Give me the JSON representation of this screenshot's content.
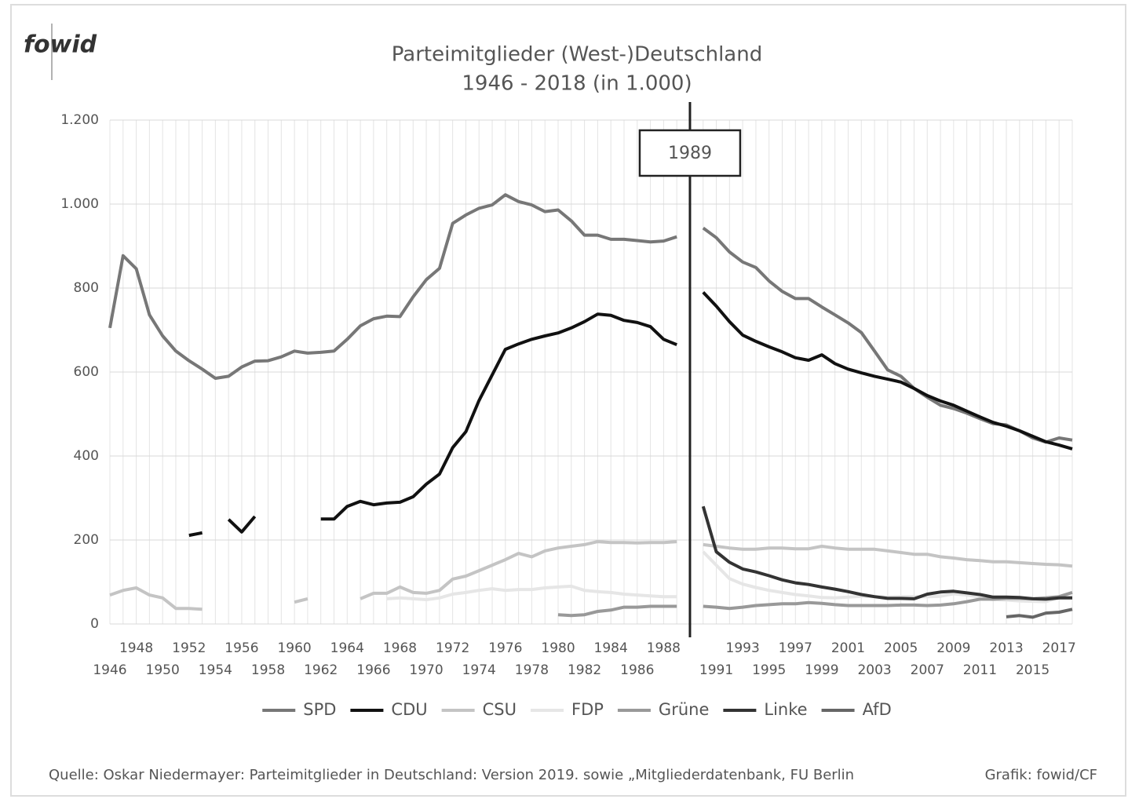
{
  "chart_data": {
    "type": "line",
    "logo": "fowid",
    "title": "Parteimitglieder (West-)Deutschland",
    "subtitle": "1946 - 2018 (in 1.000)",
    "annotation": "1989",
    "source": "Quelle: Oskar Niedermayer: Parteimitglieder in Deutschland: Version 2019. sowie „Mitgliederdatenbank, FU Berlin",
    "credit": "Grafik: fowid/CF",
    "categories": [
      "1946",
      null,
      "1948",
      null,
      "1950",
      null,
      "1952",
      null,
      "1954",
      null,
      "1956",
      null,
      "1958",
      null,
      "1960",
      null,
      "1962",
      null,
      "1964",
      null,
      "1966",
      null,
      "1968",
      null,
      "1970",
      null,
      "1972",
      null,
      "1974",
      null,
      "1976",
      null,
      "1978",
      null,
      "1980",
      null,
      "1982",
      null,
      "1984",
      null,
      "1986",
      null,
      "1988",
      null,
      null,
      null,
      "1991",
      null,
      "1993",
      null,
      "1995",
      null,
      "1997",
      null,
      "1999",
      null,
      "2001",
      null,
      "2003",
      null,
      "2005",
      null,
      "2007",
      null,
      "2009",
      null,
      "2011",
      null,
      "2013",
      null,
      "2015",
      null,
      "2017",
      null
    ],
    "ylim": [
      0,
      1200
    ],
    "yticks": [
      0,
      200,
      400,
      600,
      800,
      {
        "value": 1000,
        "label": "1.000"
      },
      {
        "value": 1200,
        "label": "1.200"
      }
    ],
    "grid": true,
    "legend": "bottom",
    "series": [
      {
        "name": "SPD",
        "color": "#777777",
        "values": [
          705,
          877,
          846,
          736,
          686,
          650,
          627,
          607,
          585,
          590,
          612,
          626,
          627,
          636,
          650,
          645,
          647,
          650,
          678,
          710,
          727,
          733,
          732,
          779,
          820,
          847,
          954,
          974,
          990,
          998,
          1022,
          1006,
          998,
          982,
          986,
          960,
          926,
          926,
          916,
          916,
          913,
          910,
          912,
          922,
          null,
          943,
          920,
          886,
          862,
          849,
          817,
          792,
          775,
          775,
          755,
          736,
          717,
          694,
          650,
          605,
          590,
          561,
          540,
          521,
          513,
          502,
          489,
          477,
          474,
          460,
          443,
          433,
          443,
          438
        ]
      },
      {
        "name": "CDU",
        "color": "#111111",
        "values": [
          null,
          null,
          null,
          null,
          null,
          null,
          211,
          217,
          null,
          249,
          219,
          256,
          null,
          null,
          null,
          null,
          250,
          250,
          280,
          292,
          284,
          288,
          290,
          303,
          333,
          357,
          420,
          458,
          532,
          593,
          654,
          667,
          678,
          686,
          693,
          705,
          720,
          738,
          735,
          723,
          718,
          708,
          678,
          665,
          null,
          790,
          757,
          720,
          688,
          673,
          660,
          648,
          634,
          628,
          641,
          620,
          607,
          598,
          590,
          583,
          576,
          561,
          544,
          531,
          521,
          507,
          493,
          480,
          471,
          460,
          447,
          434,
          426,
          417
        ]
      },
      {
        "name": "CSU",
        "color": "#c4c4c4",
        "values": [
          69,
          80,
          86,
          69,
          62,
          37,
          37,
          35,
          null,
          null,
          null,
          null,
          null,
          null,
          52,
          60,
          null,
          null,
          null,
          60,
          73,
          73,
          88,
          75,
          73,
          80,
          107,
          114,
          127,
          140,
          153,
          168,
          160,
          174,
          181,
          185,
          189,
          196,
          194,
          194,
          193,
          194,
          194,
          196,
          null,
          189,
          185,
          181,
          178,
          178,
          181,
          181,
          179,
          179,
          185,
          181,
          178,
          178,
          178,
          174,
          170,
          166,
          166,
          160,
          157,
          153,
          151,
          148,
          148,
          146,
          144,
          142,
          141,
          138
        ]
      },
      {
        "name": "FDP",
        "color": "#e6e6e6",
        "values": [
          null,
          null,
          null,
          null,
          null,
          null,
          null,
          null,
          null,
          null,
          null,
          null,
          null,
          null,
          null,
          null,
          null,
          null,
          null,
          null,
          null,
          60,
          62,
          60,
          58,
          62,
          71,
          75,
          80,
          84,
          80,
          82,
          82,
          86,
          88,
          90,
          80,
          77,
          75,
          71,
          69,
          67,
          65,
          65,
          null,
          172,
          140,
          108,
          95,
          87,
          80,
          75,
          70,
          67,
          63,
          62,
          64,
          66,
          65,
          64,
          65,
          65,
          65,
          66,
          72,
          69,
          64,
          58,
          57,
          55,
          54,
          53,
          63,
          64
        ]
      },
      {
        "name": "Grüne",
        "color": "#999999",
        "values": [
          null,
          null,
          null,
          null,
          null,
          null,
          null,
          null,
          null,
          null,
          null,
          null,
          null,
          null,
          null,
          null,
          null,
          null,
          null,
          null,
          null,
          null,
          null,
          null,
          null,
          null,
          null,
          null,
          null,
          null,
          null,
          null,
          null,
          null,
          22,
          20,
          22,
          30,
          33,
          40,
          40,
          42,
          42,
          42,
          null,
          42,
          40,
          37,
          40,
          44,
          46,
          48,
          48,
          51,
          49,
          46,
          44,
          44,
          44,
          44,
          45,
          45,
          44,
          45,
          48,
          53,
          59,
          59,
          61,
          61,
          60,
          62,
          65,
          75
        ]
      },
      {
        "name": "Linke",
        "color": "#333333",
        "values": [
          null,
          null,
          null,
          null,
          null,
          null,
          null,
          null,
          null,
          null,
          null,
          null,
          null,
          null,
          null,
          null,
          null,
          null,
          null,
          null,
          null,
          null,
          null,
          null,
          null,
          null,
          null,
          null,
          null,
          null,
          null,
          null,
          null,
          null,
          null,
          null,
          null,
          null,
          null,
          null,
          null,
          null,
          null,
          null,
          null,
          280,
          172,
          147,
          131,
          124,
          115,
          105,
          98,
          94,
          88,
          83,
          77,
          70,
          65,
          61,
          61,
          60,
          71,
          76,
          78,
          74,
          70,
          64,
          64,
          63,
          60,
          59,
          62,
          62
        ]
      },
      {
        "name": "AfD",
        "color": "#666666",
        "values": [
          null,
          null,
          null,
          null,
          null,
          null,
          null,
          null,
          null,
          null,
          null,
          null,
          null,
          null,
          null,
          null,
          null,
          null,
          null,
          null,
          null,
          null,
          null,
          null,
          null,
          null,
          null,
          null,
          null,
          null,
          null,
          null,
          null,
          null,
          null,
          null,
          null,
          null,
          null,
          null,
          null,
          null,
          null,
          null,
          null,
          null,
          null,
          null,
          null,
          null,
          null,
          null,
          null,
          null,
          null,
          null,
          null,
          null,
          null,
          null,
          null,
          null,
          null,
          null,
          null,
          null,
          null,
          null,
          17,
          20,
          16,
          26,
          28,
          35
        ]
      }
    ]
  }
}
